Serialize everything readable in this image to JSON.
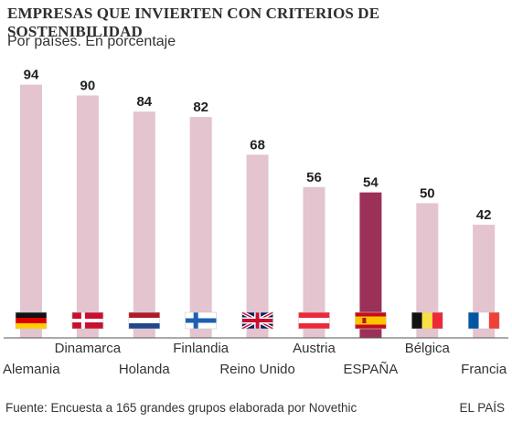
{
  "header": {
    "title": "EMPRESAS QUE INVIERTEN CON CRITERIOS DE SOSTENIBILIDAD",
    "subtitle": "Por países. En porcentaje"
  },
  "footer": {
    "source": "Fuente: Encuesta a 165 grandes grupos elaborada por Novethic",
    "brand": "EL PAÍS"
  },
  "colors": {
    "bar": "#e3c4cf",
    "bar_highlight": "#9b3158",
    "baseline": "#555555"
  },
  "chart_data": {
    "type": "bar",
    "categories": [
      "Alemania",
      "Dinamarca",
      "Holanda",
      "Finlandia",
      "Reino Unido",
      "Austria",
      "ESPAÑA",
      "Bélgica",
      "Francia"
    ],
    "values": [
      94,
      90,
      84,
      82,
      68,
      56,
      54,
      50,
      42
    ],
    "highlight": "ESPAÑA",
    "flags": [
      "germany-flag-icon",
      "denmark-flag-icon",
      "netherlands-flag-icon",
      "finland-flag-icon",
      "uk-flag-icon",
      "austria-flag-icon",
      "spain-flag-icon",
      "belgium-flag-icon",
      "france-flag-icon"
    ],
    "ylim": [
      0,
      100
    ],
    "grid": false,
    "legend": "none"
  }
}
